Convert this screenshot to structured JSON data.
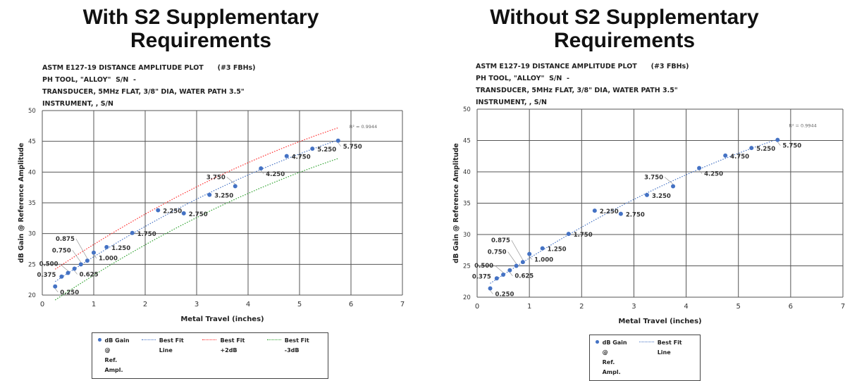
{
  "panels": [
    {
      "title_line1": "With S2 Supplementary",
      "title_line2": "Requirements",
      "header": [
        "ASTM E127-19 DISTANCE AMPLITUDE PLOT      (#3 FBHs)",
        "PH TOOL, \"ALLOY\"  S/N  -",
        "TRANSDUCER, 5MHz FLAT, 3/8\" DIA, WATER PATH 3.5\"",
        "INSTRUMENT, , S/N"
      ],
      "legend": {
        "points": "dB Gain @",
        "points2": "Ref. Ampl.",
        "fit": "Best Fit Line",
        "plus": "Best Fit +2dB",
        "minus": "Best Fit -3dB"
      }
    },
    {
      "title_line1": "Without S2 Supplementary",
      "title_line2": "Requirements",
      "header": [
        "ASTM E127-19 DISTANCE AMPLITUDE PLOT      (#3 FBHs)",
        "PH TOOL, \"ALLOY\"  S/N  -",
        "TRANSDUCER, 5MHz FLAT, 3/8\" DIA, WATER PATH 3.5\"",
        "INSTRUMENT, , S/N"
      ],
      "legend": {
        "points": "dB Gain @",
        "points2": "Ref. Ampl.",
        "fit": "Best Fit Line"
      }
    }
  ],
  "chart_data": [
    {
      "type": "scatter",
      "title": "With S2 Supplementary Requirements",
      "xlabel": "Metal Travel (inches)",
      "ylabel": "dB Gain @ Reference Amplitude",
      "xlim": [
        0,
        7
      ],
      "ylim": [
        20,
        50
      ],
      "xticks": [
        "0",
        "1",
        "2",
        "3",
        "4",
        "5",
        "6",
        "7"
      ],
      "yticks": [
        "20",
        "25",
        "30",
        "35",
        "40",
        "45",
        "50"
      ],
      "grid": true,
      "r2_label": "R² = 0.9944",
      "points": [
        {
          "x": 0.25,
          "y": 21.4,
          "label": "0.250",
          "pos": "below-right"
        },
        {
          "x": 0.375,
          "y": 23.0,
          "label": "0.375",
          "pos": "left"
        },
        {
          "x": 0.5,
          "y": 23.6,
          "label": "0.500",
          "pos": "above-left"
        },
        {
          "x": 0.625,
          "y": 24.3,
          "label": "0.625",
          "pos": "below-right"
        },
        {
          "x": 0.75,
          "y": 25.0,
          "label": "0.750",
          "pos": "above-left-2"
        },
        {
          "x": 0.875,
          "y": 25.6,
          "label": "0.875",
          "pos": "above-left-3"
        },
        {
          "x": 1.0,
          "y": 26.9,
          "label": "1.000",
          "pos": "below-right"
        },
        {
          "x": 1.25,
          "y": 27.8,
          "label": "1.250",
          "pos": "right"
        },
        {
          "x": 1.75,
          "y": 30.1,
          "label": "1.750",
          "pos": "right"
        },
        {
          "x": 2.25,
          "y": 33.8,
          "label": "2.250",
          "pos": "right"
        },
        {
          "x": 2.75,
          "y": 33.3,
          "label": "2.750",
          "pos": "right"
        },
        {
          "x": 3.25,
          "y": 36.3,
          "label": "3.250",
          "pos": "right"
        },
        {
          "x": 3.75,
          "y": 37.7,
          "label": "3.750",
          "pos": "above-left"
        },
        {
          "x": 4.25,
          "y": 40.6,
          "label": "4.250",
          "pos": "below-right"
        },
        {
          "x": 4.75,
          "y": 42.6,
          "label": "4.750",
          "pos": "right"
        },
        {
          "x": 5.25,
          "y": 43.8,
          "label": "5.250",
          "pos": "right"
        },
        {
          "x": 5.75,
          "y": 45.1,
          "label": "5.750",
          "pos": "below-right"
        }
      ],
      "trendline": {
        "type": "polynomial",
        "coefficients": [
          20.79,
          5.69,
          -0.2513
        ],
        "x_range": [
          0.25,
          5.75
        ]
      },
      "series": [
        {
          "name": "dB Gain @ Ref. Ampl.",
          "kind": "points",
          "color": "#4472c4"
        },
        {
          "name": "Best Fit Line",
          "offset": 0,
          "color": "#4472c4"
        },
        {
          "name": "Best Fit +2dB",
          "offset": 2,
          "color": "#ff2a2a"
        },
        {
          "name": "Best Fit -3dB",
          "offset": -3,
          "color": "#2ca02c"
        }
      ]
    },
    {
      "type": "scatter",
      "title": "Without S2 Supplementary Requirements",
      "xlabel": "Metal Travel (inches)",
      "ylabel": "dB Gain @ Reference Amplitude",
      "xlim": [
        0,
        7
      ],
      "ylim": [
        20,
        50
      ],
      "xticks": [
        "0",
        "1",
        "2",
        "3",
        "4",
        "5",
        "6",
        "7"
      ],
      "yticks": [
        "20",
        "25",
        "30",
        "35",
        "40",
        "45",
        "50"
      ],
      "grid": true,
      "r2_label": "R² = 0.9944",
      "points": [
        {
          "x": 0.25,
          "y": 21.4,
          "label": "0.250",
          "pos": "below-right"
        },
        {
          "x": 0.375,
          "y": 23.0,
          "label": "0.375",
          "pos": "left"
        },
        {
          "x": 0.5,
          "y": 23.6,
          "label": "0.500",
          "pos": "above-left"
        },
        {
          "x": 0.625,
          "y": 24.3,
          "label": "0.625",
          "pos": "below-right"
        },
        {
          "x": 0.75,
          "y": 25.0,
          "label": "0.750",
          "pos": "above-left-2"
        },
        {
          "x": 0.875,
          "y": 25.6,
          "label": "0.875",
          "pos": "above-left-3"
        },
        {
          "x": 1.0,
          "y": 26.9,
          "label": "1.000",
          "pos": "below-right"
        },
        {
          "x": 1.25,
          "y": 27.8,
          "label": "1.250",
          "pos": "right"
        },
        {
          "x": 1.75,
          "y": 30.1,
          "label": "1.750",
          "pos": "right"
        },
        {
          "x": 2.25,
          "y": 33.8,
          "label": "2.250",
          "pos": "right"
        },
        {
          "x": 2.75,
          "y": 33.3,
          "label": "2.750",
          "pos": "right"
        },
        {
          "x": 3.25,
          "y": 36.3,
          "label": "3.250",
          "pos": "right"
        },
        {
          "x": 3.75,
          "y": 37.7,
          "label": "3.750",
          "pos": "above-left"
        },
        {
          "x": 4.25,
          "y": 40.6,
          "label": "4.250",
          "pos": "below-right"
        },
        {
          "x": 4.75,
          "y": 42.6,
          "label": "4.750",
          "pos": "right"
        },
        {
          "x": 5.25,
          "y": 43.8,
          "label": "5.250",
          "pos": "right"
        },
        {
          "x": 5.75,
          "y": 45.1,
          "label": "5.750",
          "pos": "below-right"
        }
      ],
      "trendline": {
        "type": "polynomial",
        "coefficients": [
          20.79,
          5.69,
          -0.2513
        ],
        "x_range": [
          0.25,
          5.75
        ]
      },
      "series": [
        {
          "name": "dB Gain @ Ref. Ampl.",
          "kind": "points",
          "color": "#4472c4"
        },
        {
          "name": "Best Fit Line",
          "offset": 0,
          "color": "#4472c4"
        }
      ]
    }
  ]
}
